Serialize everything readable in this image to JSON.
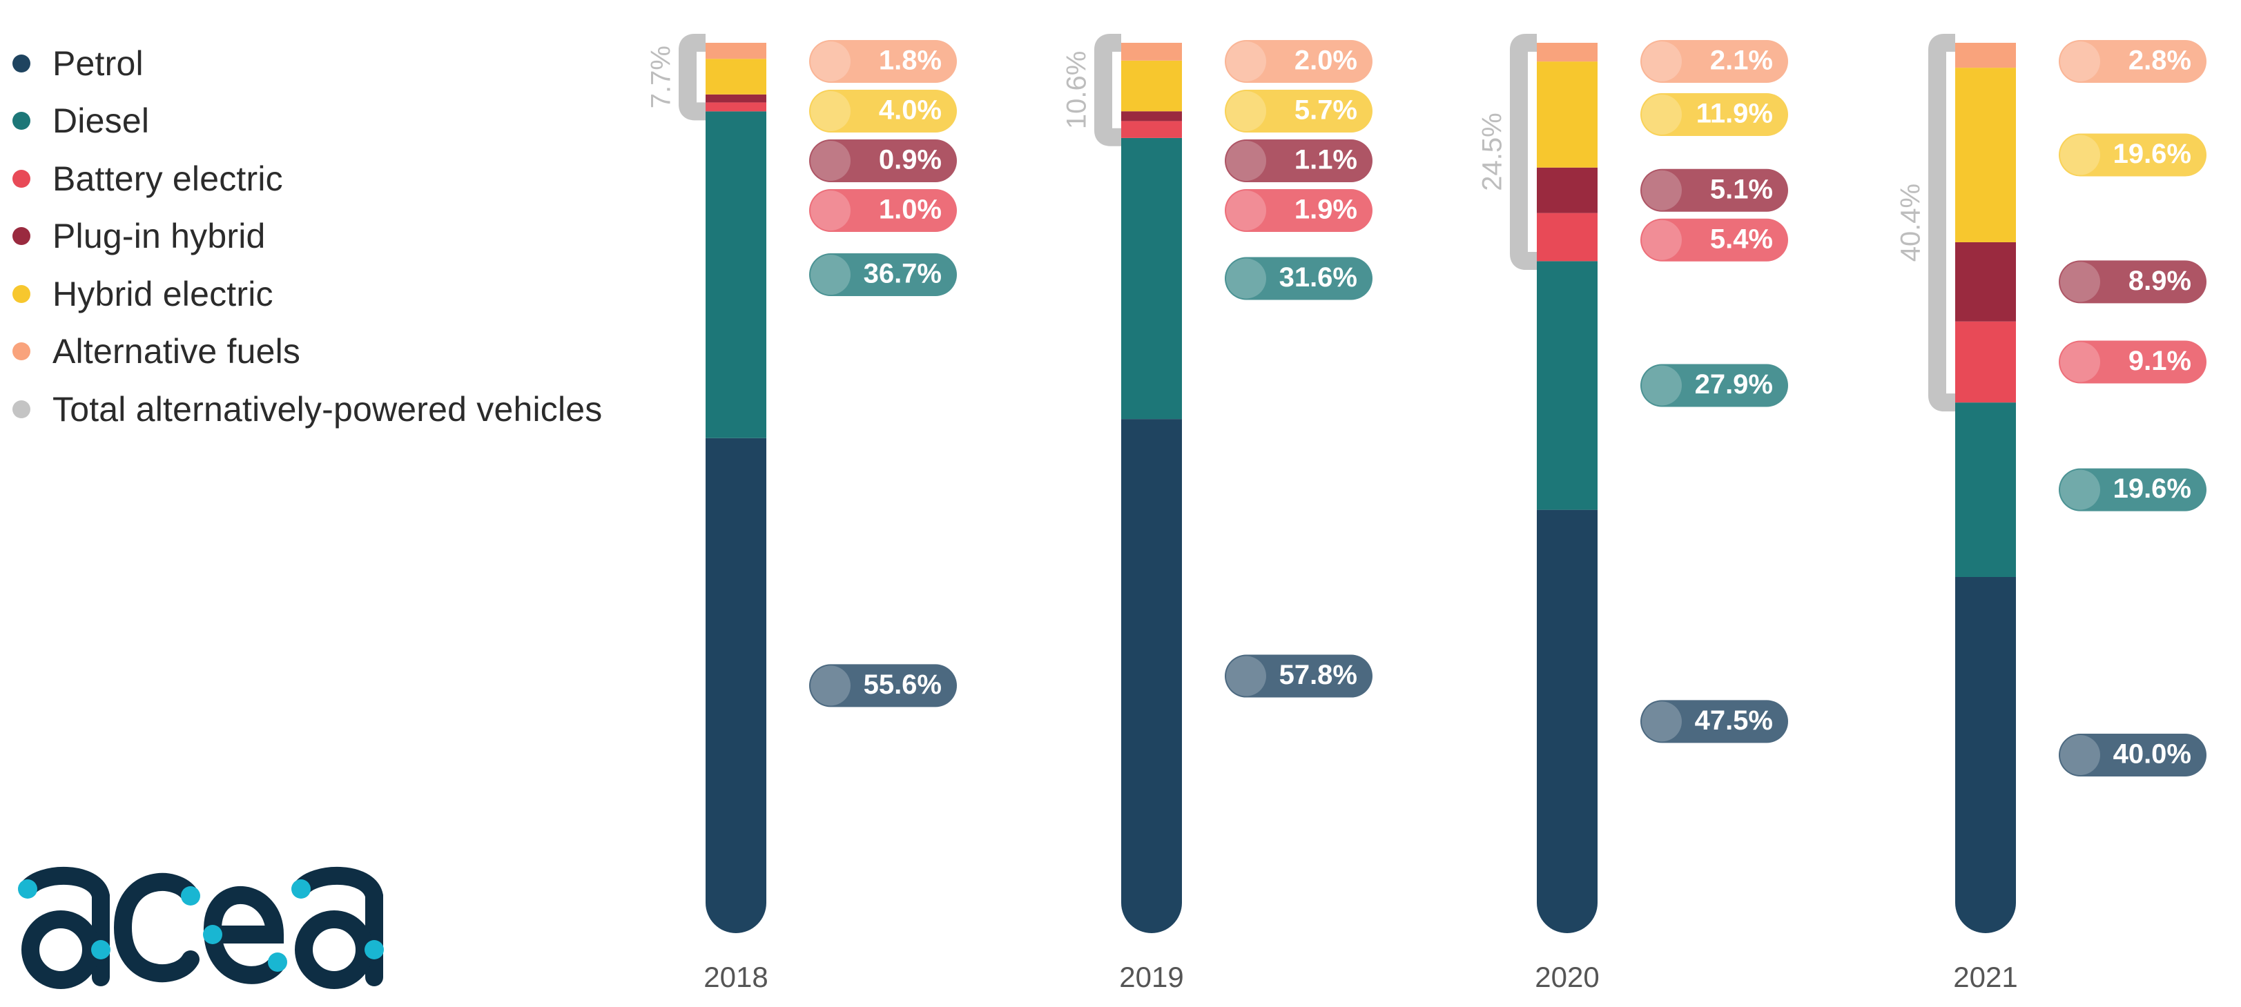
{
  "chart_data": {
    "type": "bar",
    "stacked": true,
    "unit": "%",
    "categories": [
      "2018",
      "2019",
      "2020",
      "2021"
    ],
    "series": [
      {
        "name": "Petrol",
        "color": "#1f4460",
        "values": [
          55.6,
          57.8,
          47.5,
          40.0
        ]
      },
      {
        "name": "Diesel",
        "color": "#1d7778",
        "values": [
          36.7,
          31.6,
          27.9,
          19.6
        ]
      },
      {
        "name": "Battery electric",
        "color": "#e84a57",
        "values": [
          1.0,
          1.9,
          5.4,
          9.1
        ]
      },
      {
        "name": "Plug-in hybrid",
        "color": "#9a2a3f",
        "values": [
          0.9,
          1.1,
          5.1,
          8.9
        ]
      },
      {
        "name": "Hybrid electric",
        "color": "#f7c72e",
        "values": [
          4.0,
          5.7,
          11.9,
          19.6
        ]
      },
      {
        "name": "Alternative fuels",
        "color": "#f9a37c",
        "values": [
          1.8,
          2.0,
          2.1,
          2.8
        ]
      }
    ],
    "data_labels": {
      "2018": [
        "55.6%",
        "36.7%",
        "1.0%",
        "0.9%",
        "4.0%",
        "1.8%"
      ],
      "2019": [
        "57.8%",
        "31.6%",
        "1.9%",
        "1.1%",
        "5.7%",
        "2.0%"
      ],
      "2020": [
        "47.5%",
        "27.9%",
        "5.4%",
        "5.1%",
        "11.9%",
        "2.1%"
      ],
      "2021": [
        "40.0%",
        "19.6%",
        "9.1%",
        "8.9%",
        "19.6%",
        "2.8%"
      ]
    },
    "total_alternative": {
      "name": "Total alternatively-powered vehicles",
      "color": "#c4c4c4",
      "values": [
        7.7,
        10.6,
        24.5,
        40.4
      ],
      "labels": [
        "7.7%",
        "10.6%",
        "24.5%",
        "40.4%"
      ]
    },
    "legend": {
      "position": "top-left",
      "entries": [
        {
          "label": "Petrol",
          "color": "#1f4460"
        },
        {
          "label": "Diesel",
          "color": "#1d7778"
        },
        {
          "label": "Battery electric",
          "color": "#e84a57"
        },
        {
          "label": "Plug-in hybrid",
          "color": "#9a2a3f"
        },
        {
          "label": "Hybrid electric",
          "color": "#f7c72e"
        },
        {
          "label": "Alternative fuels",
          "color": "#f9a37c"
        },
        {
          "label": "Total alternatively-powered vehicles",
          "color": "#c4c4c4"
        }
      ]
    },
    "ylim": [
      0,
      100
    ],
    "grid": false,
    "title": "",
    "xlabel": "",
    "ylabel": ""
  },
  "logo": {
    "text": "acea",
    "color": "#0e2e44",
    "accent": "#19b6d2"
  }
}
